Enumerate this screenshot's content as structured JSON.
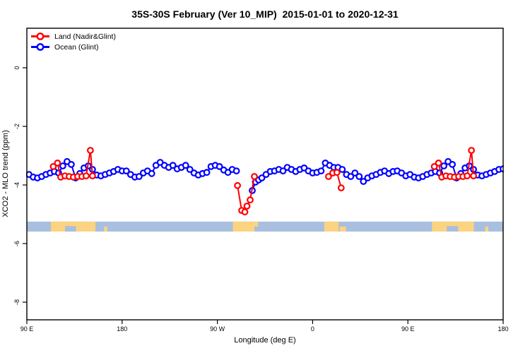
{
  "title": "35S-30S February (Ver 10_MIP)  2015-01-01 to 2020-12-31",
  "legend": {
    "items": [
      {
        "label": "Land (Nadir&Glint)",
        "color": "#ff0000"
      },
      {
        "label": "Ocean (Glint)",
        "color": "#0000ff"
      }
    ]
  },
  "chart_data": {
    "type": "line",
    "title": "35S-30S February (Ver 10_MIP)  2015-01-01 to 2020-12-31",
    "xlabel": "Longitude (deg E)",
    "ylabel": "XCO2 - MLO trend (ppm)",
    "x_axis": {
      "note": "longitude axis wraps eastward from 90E: 0=90E, 90=180, 180=90W, 270=0, 360=90E, 450=180",
      "range_deg": [
        0,
        450
      ],
      "ticks_deg": [
        0,
        90,
        180,
        270,
        360,
        450
      ],
      "tick_labels": [
        "90 E",
        "180",
        "90 W",
        "0",
        "90 E",
        "180"
      ]
    },
    "y_axis": {
      "range": [
        -8.6,
        1.35
      ],
      "ticks": [
        0,
        -2,
        -4,
        -6,
        -8
      ],
      "tick_labels": [
        "0",
        "-2",
        "-4",
        "-6",
        "-8"
      ]
    },
    "grid": false,
    "legend_position": "top-left",
    "series": [
      {
        "name": "Ocean (Glint)",
        "color": "#0000ff",
        "marker": "open-circle",
        "segments": [
          [
            [
              2,
              -3.64
            ],
            [
              6,
              -3.73
            ],
            [
              10,
              -3.76
            ],
            [
              14,
              -3.71
            ],
            [
              18,
              -3.64
            ],
            [
              22,
              -3.59
            ],
            [
              26,
              -3.54
            ],
            [
              30,
              -3.59
            ],
            [
              34,
              -3.35
            ],
            [
              38,
              -3.2
            ],
            [
              42,
              -3.3
            ],
            [
              46,
              -3.76
            ],
            [
              50,
              -3.61
            ],
            [
              54,
              -3.42
            ],
            [
              58,
              -3.35
            ],
            [
              62,
              -3.47
            ],
            [
              66,
              -3.66
            ],
            [
              70,
              -3.69
            ],
            [
              74,
              -3.64
            ],
            [
              78,
              -3.59
            ],
            [
              82,
              -3.54
            ],
            [
              86,
              -3.47
            ],
            [
              90,
              -3.52
            ],
            [
              94,
              -3.52
            ],
            [
              98,
              -3.64
            ],
            [
              102,
              -3.73
            ],
            [
              106,
              -3.71
            ],
            [
              110,
              -3.59
            ],
            [
              114,
              -3.52
            ],
            [
              118,
              -3.61
            ],
            [
              122,
              -3.33
            ],
            [
              126,
              -3.23
            ],
            [
              130,
              -3.33
            ],
            [
              134,
              -3.4
            ],
            [
              138,
              -3.33
            ],
            [
              142,
              -3.45
            ],
            [
              146,
              -3.4
            ],
            [
              150,
              -3.33
            ],
            [
              154,
              -3.47
            ],
            [
              158,
              -3.59
            ],
            [
              162,
              -3.66
            ],
            [
              166,
              -3.61
            ],
            [
              170,
              -3.57
            ],
            [
              174,
              -3.37
            ],
            [
              178,
              -3.33
            ],
            [
              182,
              -3.37
            ],
            [
              186,
              -3.49
            ],
            [
              190,
              -3.57
            ],
            [
              194,
              -3.47
            ],
            [
              198,
              -3.52
            ]
          ],
          [
            [
              213,
              -4.19
            ],
            [
              216,
              -3.9
            ],
            [
              219,
              -3.83
            ],
            [
              222,
              -3.76
            ],
            [
              226,
              -3.64
            ],
            [
              230,
              -3.54
            ],
            [
              234,
              -3.52
            ],
            [
              238,
              -3.47
            ],
            [
              242,
              -3.52
            ],
            [
              246,
              -3.4
            ],
            [
              250,
              -3.47
            ],
            [
              254,
              -3.54
            ],
            [
              258,
              -3.47
            ],
            [
              262,
              -3.42
            ],
            [
              266,
              -3.52
            ],
            [
              270,
              -3.59
            ],
            [
              274,
              -3.57
            ],
            [
              278,
              -3.52
            ],
            [
              282,
              -3.25
            ],
            [
              286,
              -3.33
            ],
            [
              290,
              -3.4
            ],
            [
              294,
              -3.4
            ],
            [
              298,
              -3.47
            ],
            [
              302,
              -3.64
            ],
            [
              306,
              -3.71
            ],
            [
              310,
              -3.59
            ],
            [
              314,
              -3.71
            ],
            [
              318,
              -3.88
            ],
            [
              322,
              -3.76
            ],
            [
              326,
              -3.69
            ],
            [
              330,
              -3.64
            ],
            [
              334,
              -3.57
            ],
            [
              338,
              -3.52
            ],
            [
              342,
              -3.61
            ],
            [
              346,
              -3.54
            ],
            [
              350,
              -3.52
            ],
            [
              354,
              -3.59
            ],
            [
              358,
              -3.69
            ],
            [
              362,
              -3.64
            ],
            [
              366,
              -3.73
            ],
            [
              370,
              -3.76
            ],
            [
              374,
              -3.71
            ],
            [
              378,
              -3.64
            ],
            [
              382,
              -3.59
            ],
            [
              386,
              -3.54
            ],
            [
              390,
              -3.59
            ],
            [
              394,
              -3.35
            ],
            [
              398,
              -3.2
            ],
            [
              402,
              -3.3
            ],
            [
              406,
              -3.76
            ],
            [
              410,
              -3.61
            ],
            [
              414,
              -3.42
            ],
            [
              418,
              -3.35
            ],
            [
              422,
              -3.47
            ],
            [
              426,
              -3.66
            ],
            [
              430,
              -3.69
            ],
            [
              434,
              -3.64
            ],
            [
              438,
              -3.59
            ],
            [
              442,
              -3.54
            ],
            [
              446,
              -3.47
            ],
            [
              450,
              -3.45
            ]
          ]
        ]
      },
      {
        "name": "Land (Nadir&Glint)",
        "color": "#ff0000",
        "marker": "open-circle",
        "segments": [
          [
            [
              25,
              -3.37
            ],
            [
              29,
              -3.25
            ],
            [
              32,
              -3.73
            ],
            [
              36,
              -3.69
            ],
            [
              40,
              -3.71
            ],
            [
              44,
              -3.73
            ],
            [
              48,
              -3.71
            ],
            [
              52,
              -3.71
            ],
            [
              56,
              -3.69
            ],
            [
              60,
              -2.82
            ],
            [
              62,
              -3.69
            ]
          ],
          [
            [
              199,
              -4.02
            ],
            [
              203,
              -4.87
            ],
            [
              206,
              -4.92
            ],
            [
              208,
              -4.72
            ],
            [
              211,
              -4.51
            ],
            [
              215,
              -3.71
            ]
          ],
          [
            [
              285,
              -3.71
            ],
            [
              289,
              -3.59
            ],
            [
              293,
              -3.57
            ],
            [
              297,
              -4.1
            ]
          ],
          [
            [
              385,
              -3.37
            ],
            [
              389,
              -3.25
            ],
            [
              392,
              -3.73
            ],
            [
              396,
              -3.69
            ],
            [
              400,
              -3.71
            ],
            [
              404,
              -3.73
            ],
            [
              408,
              -3.71
            ],
            [
              412,
              -3.71
            ],
            [
              416,
              -3.69
            ],
            [
              420,
              -2.82
            ],
            [
              422,
              -3.69
            ]
          ]
        ]
      }
    ],
    "map_band": {
      "description": "land/ocean strip for the 35S-30S latitude band",
      "ocean_color": "#a9bfdf",
      "land_color": "#fcd380",
      "y_top_value": -5.25,
      "y_bottom_value": -5.59,
      "land_patches_deg": [
        {
          "from": 22.7,
          "to": 64.8,
          "part": "full",
          "name": "australia"
        },
        {
          "from": 36.0,
          "to": 46.5,
          "part": "ocean-notch",
          "name": "great-australian-bight"
        },
        {
          "from": 73.0,
          "to": 76.0,
          "part": "bottom",
          "name": "new-zealand"
        },
        {
          "from": 194.7,
          "to": 215.0,
          "part": "full",
          "name": "south-america"
        },
        {
          "from": 215.0,
          "to": 218.5,
          "part": "top",
          "name": "south-america-east"
        },
        {
          "from": 281.0,
          "to": 294.5,
          "part": "full",
          "name": "south-africa"
        },
        {
          "from": 295.5,
          "to": 301.5,
          "part": "bottom",
          "name": "south-africa-east"
        },
        {
          "from": 382.7,
          "to": 422.3,
          "part": "full",
          "name": "australia-repeat"
        },
        {
          "from": 396.7,
          "to": 407.5,
          "part": "ocean-notch",
          "name": "great-australian-bight-repeat"
        },
        {
          "from": 433.0,
          "to": 436.0,
          "part": "bottom",
          "name": "new-zealand-repeat"
        }
      ]
    }
  }
}
